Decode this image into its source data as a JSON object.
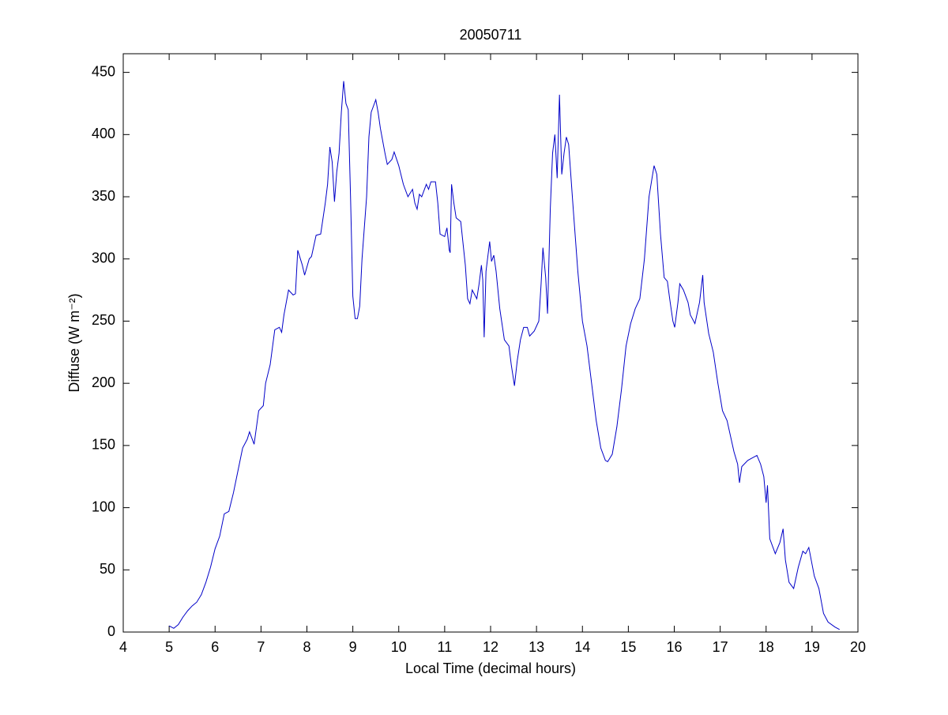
{
  "chart_data": {
    "type": "line",
    "title": "20050711",
    "xlabel": "Local Time (decimal hours)",
    "ylabel": "Diffuse (W m⁻²)",
    "color": "#0000c8",
    "xlim": [
      4,
      20
    ],
    "xticks": [
      4,
      5,
      6,
      7,
      8,
      9,
      10,
      11,
      12,
      13,
      14,
      15,
      16,
      17,
      18,
      19,
      20
    ],
    "ylim": [
      0,
      465
    ],
    "yticks": [
      0,
      50,
      100,
      150,
      200,
      250,
      300,
      350,
      400,
      450
    ],
    "grid": false,
    "x": [
      5.0,
      5.1,
      5.2,
      5.3,
      5.4,
      5.5,
      5.6,
      5.7,
      5.8,
      5.9,
      6.0,
      6.1,
      6.2,
      6.3,
      6.4,
      6.5,
      6.6,
      6.7,
      6.75,
      6.85,
      6.95,
      7.05,
      7.1,
      7.2,
      7.3,
      7.4,
      7.45,
      7.5,
      7.6,
      7.7,
      7.75,
      7.8,
      7.9,
      7.95,
      8.05,
      8.1,
      8.2,
      8.3,
      8.4,
      8.45,
      8.5,
      8.55,
      8.6,
      8.65,
      8.7,
      8.75,
      8.8,
      8.85,
      8.9,
      8.95,
      9.0,
      9.05,
      9.1,
      9.15,
      9.2,
      9.3,
      9.35,
      9.4,
      9.45,
      9.5,
      9.55,
      9.6,
      9.7,
      9.75,
      9.85,
      9.9,
      10.0,
      10.1,
      10.2,
      10.3,
      10.35,
      10.4,
      10.45,
      10.5,
      10.6,
      10.65,
      10.7,
      10.8,
      10.85,
      10.9,
      11.0,
      11.05,
      11.1,
      11.12,
      11.15,
      11.2,
      11.25,
      11.35,
      11.45,
      11.5,
      11.55,
      11.6,
      11.7,
      11.75,
      11.8,
      11.83,
      11.86,
      11.9,
      11.98,
      12.02,
      12.07,
      12.12,
      12.2,
      12.3,
      12.4,
      12.45,
      12.52,
      12.58,
      12.65,
      12.72,
      12.8,
      12.85,
      12.95,
      13.05,
      13.1,
      13.14,
      13.2,
      13.24,
      13.3,
      13.35,
      13.4,
      13.45,
      13.5,
      13.55,
      13.6,
      13.65,
      13.7,
      13.8,
      13.9,
      14.0,
      14.1,
      14.2,
      14.3,
      14.4,
      14.5,
      14.55,
      14.65,
      14.75,
      14.85,
      14.95,
      15.05,
      15.15,
      15.25,
      15.35,
      15.45,
      15.56,
      15.62,
      15.7,
      15.78,
      15.85,
      15.9,
      15.97,
      16.01,
      16.08,
      16.12,
      16.2,
      16.25,
      16.3,
      16.35,
      16.45,
      16.55,
      16.62,
      16.65,
      16.75,
      16.85,
      16.95,
      17.05,
      17.15,
      17.3,
      17.38,
      17.42,
      17.47,
      17.6,
      17.7,
      17.8,
      17.88,
      17.95,
      18.0,
      18.03,
      18.08,
      18.2,
      18.3,
      18.37,
      18.42,
      18.5,
      18.6,
      18.7,
      18.8,
      18.86,
      18.93,
      19.05,
      19.15,
      19.25,
      19.35,
      19.5,
      19.6
    ],
    "values": [
      5,
      3,
      6,
      12,
      17,
      21,
      24,
      30,
      40,
      52,
      67,
      77,
      95,
      97,
      112,
      130,
      148,
      155,
      161,
      151,
      178,
      182,
      200,
      215,
      243,
      245,
      241,
      255,
      275,
      271,
      272,
      307,
      295,
      287,
      300,
      302,
      319,
      320,
      345,
      360,
      390,
      378,
      346,
      370,
      385,
      418,
      443,
      425,
      420,
      350,
      270,
      252,
      252,
      262,
      300,
      350,
      398,
      418,
      423,
      428,
      418,
      405,
      385,
      376,
      380,
      386,
      375,
      360,
      350,
      356,
      345,
      340,
      352,
      350,
      360,
      356,
      362,
      362,
      345,
      320,
      318,
      325,
      307,
      305,
      360,
      345,
      333,
      330,
      295,
      268,
      264,
      275,
      268,
      280,
      295,
      283,
      237,
      290,
      314,
      298,
      303,
      290,
      260,
      235,
      230,
      215,
      198,
      218,
      235,
      245,
      245,
      238,
      242,
      250,
      280,
      309,
      285,
      256,
      340,
      385,
      400,
      365,
      432,
      368,
      385,
      398,
      392,
      340,
      290,
      250,
      230,
      200,
      170,
      148,
      138,
      137,
      143,
      165,
      195,
      230,
      248,
      260,
      268,
      300,
      350,
      375,
      368,
      320,
      285,
      282,
      268,
      250,
      245,
      265,
      280,
      275,
      270,
      265,
      255,
      248,
      265,
      287,
      265,
      240,
      225,
      200,
      178,
      170,
      145,
      135,
      120,
      133,
      138,
      140,
      142,
      135,
      125,
      104,
      118,
      75,
      63,
      72,
      83,
      58,
      40,
      35,
      52,
      65,
      63,
      68,
      45,
      35,
      15,
      8,
      4,
      2
    ]
  }
}
